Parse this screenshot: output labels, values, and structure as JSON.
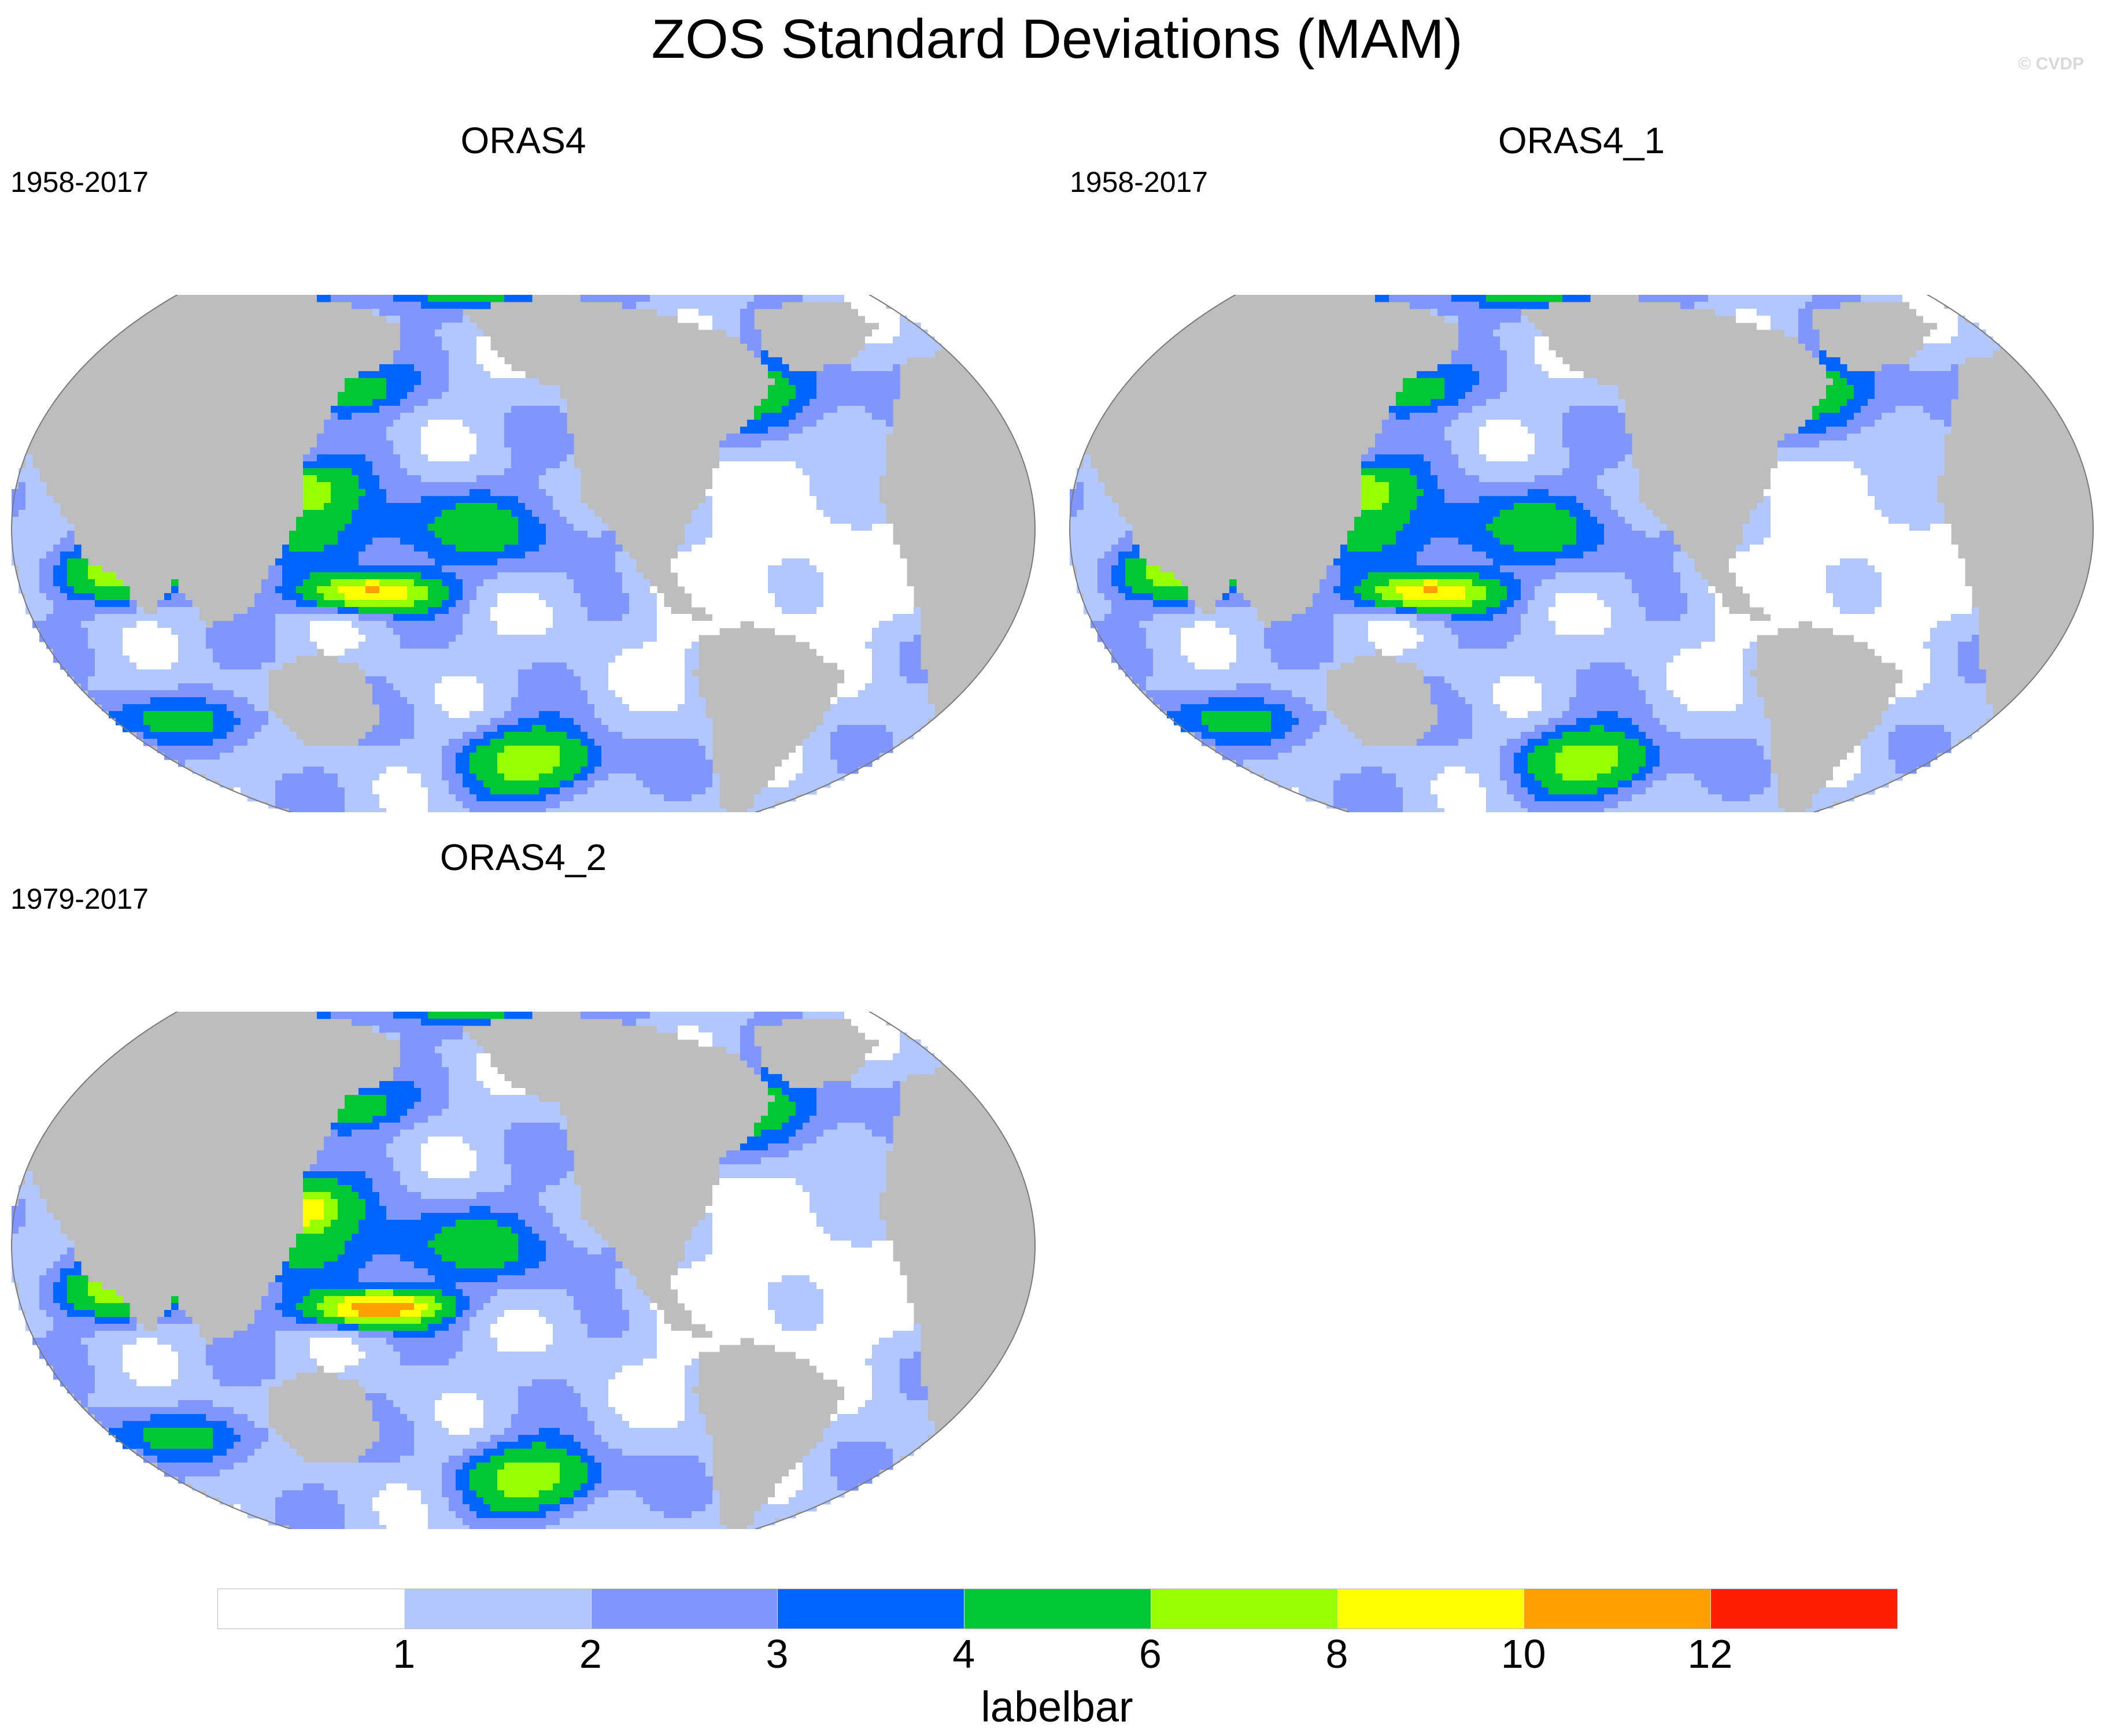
{
  "title": "ZOS Standard Deviations (MAM)",
  "watermark": "© CVDP",
  "panels": [
    {
      "name": "ORAS4",
      "years": "1958-2017"
    },
    {
      "name": "ORAS4_1",
      "years": "1958-2017"
    },
    {
      "name": "ORAS4_2",
      "years": "1979-2017"
    }
  ],
  "map_style": {
    "projection": "robinson",
    "central_meridian": "180",
    "land_color": "#bdbdbd",
    "ice_color": "#ffffff"
  },
  "labelbar": {
    "title": "labelbar",
    "colors": [
      "#ffffff",
      "#b3c7ff",
      "#8096ff",
      "#0064ff",
      "#00c832",
      "#96ff00",
      "#ffff00",
      "#ffa000",
      "#ff1e00"
    ],
    "tick_labels": [
      "1",
      "2",
      "3",
      "4",
      "6",
      "8",
      "10",
      "12"
    ]
  }
}
